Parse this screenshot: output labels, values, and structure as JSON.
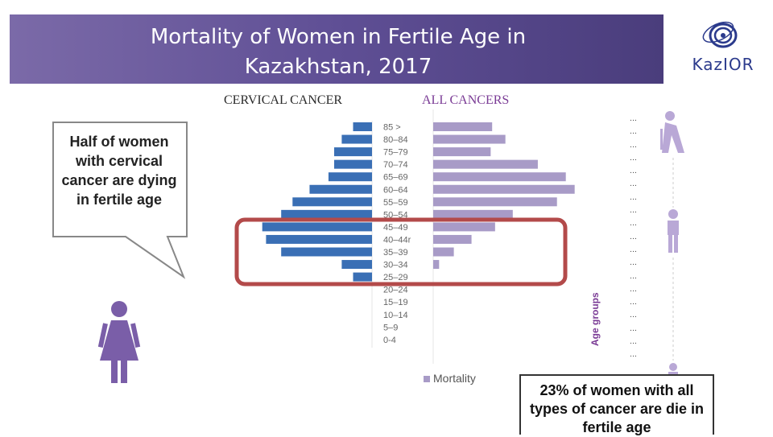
{
  "title_line1": "Mortality of Women in Fertile Age in",
  "title_line2": "Kazakhstan, 2017",
  "logo_text": "KazIOR",
  "cervical_label": "CERVICAL CANCER",
  "all_label": "ALL CANCERS",
  "callout_text": "Half of women with  cervical cancer are dying in fertile age",
  "bottom_text": "23% of women with all types of cancer are die in fertile age",
  "colors": {
    "banner": "#5f4f95",
    "cervical_bar": "#3a6fb5",
    "all_bar": "#a89bc7",
    "highlight": "#b34a4a",
    "accent": "#7a3b95"
  },
  "chart_data": [
    {
      "type": "bar",
      "title": "CERVICAL CANCER",
      "orientation": "horizontal",
      "direction": "left",
      "categories": [
        "85 >",
        "80–84",
        "75–79",
        "70–74",
        "65–69",
        "60–64",
        "55–59",
        "50–54",
        "45–49",
        "40–44r",
        "35–39",
        "30–34",
        "25–29",
        "20–24",
        "15–19",
        "10–14",
        "5–9",
        "0-4"
      ],
      "values": [
        1.0,
        1.6,
        2.0,
        2.0,
        2.3,
        3.3,
        4.2,
        4.8,
        5.8,
        5.6,
        4.8,
        1.6,
        1.0,
        0,
        0,
        0,
        0,
        0
      ]
    },
    {
      "type": "bar",
      "title": "ALL CANCERS",
      "orientation": "horizontal",
      "direction": "right",
      "categories": [
        "85 >",
        "80–84",
        "75–79",
        "70–74",
        "65–69",
        "60–64",
        "55–59",
        "50–54",
        "45–49",
        "40–44r",
        "35–39",
        "30–34",
        "25–29",
        "20–24",
        "15–19",
        "10–14",
        "5–9",
        "0-4"
      ],
      "series": [
        {
          "name": "Mortality",
          "values": [
            4.0,
            4.9,
            3.9,
            7.1,
            9.0,
            9.6,
            8.4,
            5.4,
            4.2,
            2.6,
            1.4,
            0.4,
            0,
            0,
            0,
            0,
            0,
            0
          ]
        }
      ],
      "ylabel": "Age groups",
      "legend": "bottom-left"
    }
  ],
  "dot_rows": [
    "…",
    "…",
    "…",
    "…",
    "…",
    "…",
    "…",
    "…",
    "…",
    "…",
    "…",
    "…",
    "…",
    "…",
    "…",
    "…",
    "…",
    "…",
    "…"
  ]
}
